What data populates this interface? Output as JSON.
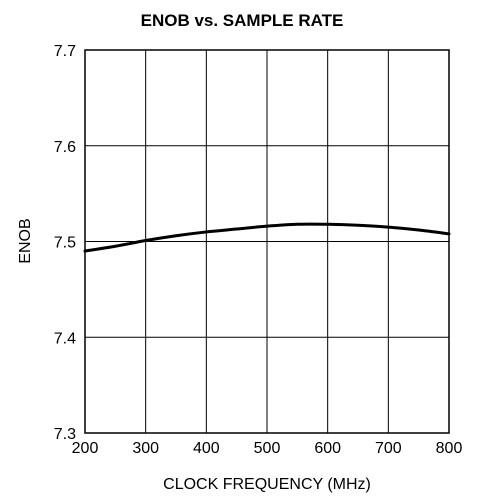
{
  "chart_data": {
    "type": "line",
    "title": "ENOB vs. SAMPLE RATE",
    "xlabel": "CLOCK FREQUENCY (MHz)",
    "ylabel": "ENOB",
    "xlim": [
      200,
      800
    ],
    "ylim": [
      7.3,
      7.7
    ],
    "x_ticks": [
      200,
      300,
      400,
      500,
      600,
      700,
      800
    ],
    "y_ticks": [
      7.3,
      7.4,
      7.5,
      7.6,
      7.7
    ],
    "x_tick_labels": [
      "200",
      "300",
      "400",
      "500",
      "600",
      "700",
      "800"
    ],
    "y_tick_labels": [
      "7.3",
      "7.4",
      "7.5",
      "7.6",
      "7.7"
    ],
    "grid": true,
    "series": [
      {
        "x": [
          200,
          250,
          300,
          350,
          400,
          450,
          500,
          550,
          600,
          650,
          700,
          750,
          800
        ],
        "values": [
          7.49,
          7.495,
          7.501,
          7.506,
          7.51,
          7.513,
          7.516,
          7.518,
          7.518,
          7.517,
          7.515,
          7.512,
          7.508
        ],
        "color": "#000000"
      }
    ]
  }
}
